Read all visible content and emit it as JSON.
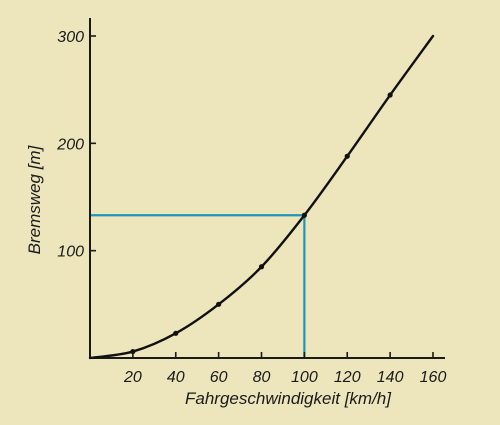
{
  "chart_data": {
    "type": "line",
    "xlabel": "Fahrgeschwindigkeit [km/h]",
    "ylabel": "Bremsweg [m]",
    "xlim": [
      0,
      160
    ],
    "ylim": [
      0,
      300
    ],
    "x_ticks": [
      "20",
      "40",
      "60",
      "80",
      "100",
      "120",
      "140",
      "160"
    ],
    "y_ticks": [
      "100",
      "200",
      "300"
    ],
    "x_tick_values": [
      20,
      40,
      60,
      80,
      100,
      120,
      140,
      160
    ],
    "y_tick_values": [
      100,
      200,
      300
    ],
    "grid": false,
    "series": [
      {
        "x": [
          0,
          20,
          40,
          60,
          80,
          100,
          120,
          140,
          160
        ],
        "y": [
          0,
          6,
          23,
          50,
          85,
          133,
          188,
          245,
          300
        ],
        "marker_x": [
          20,
          40,
          60,
          80,
          100,
          120,
          140
        ],
        "color": "#111111"
      }
    ],
    "annotation": {
      "x": 100,
      "y": 133,
      "color": "#1d95b8"
    }
  }
}
